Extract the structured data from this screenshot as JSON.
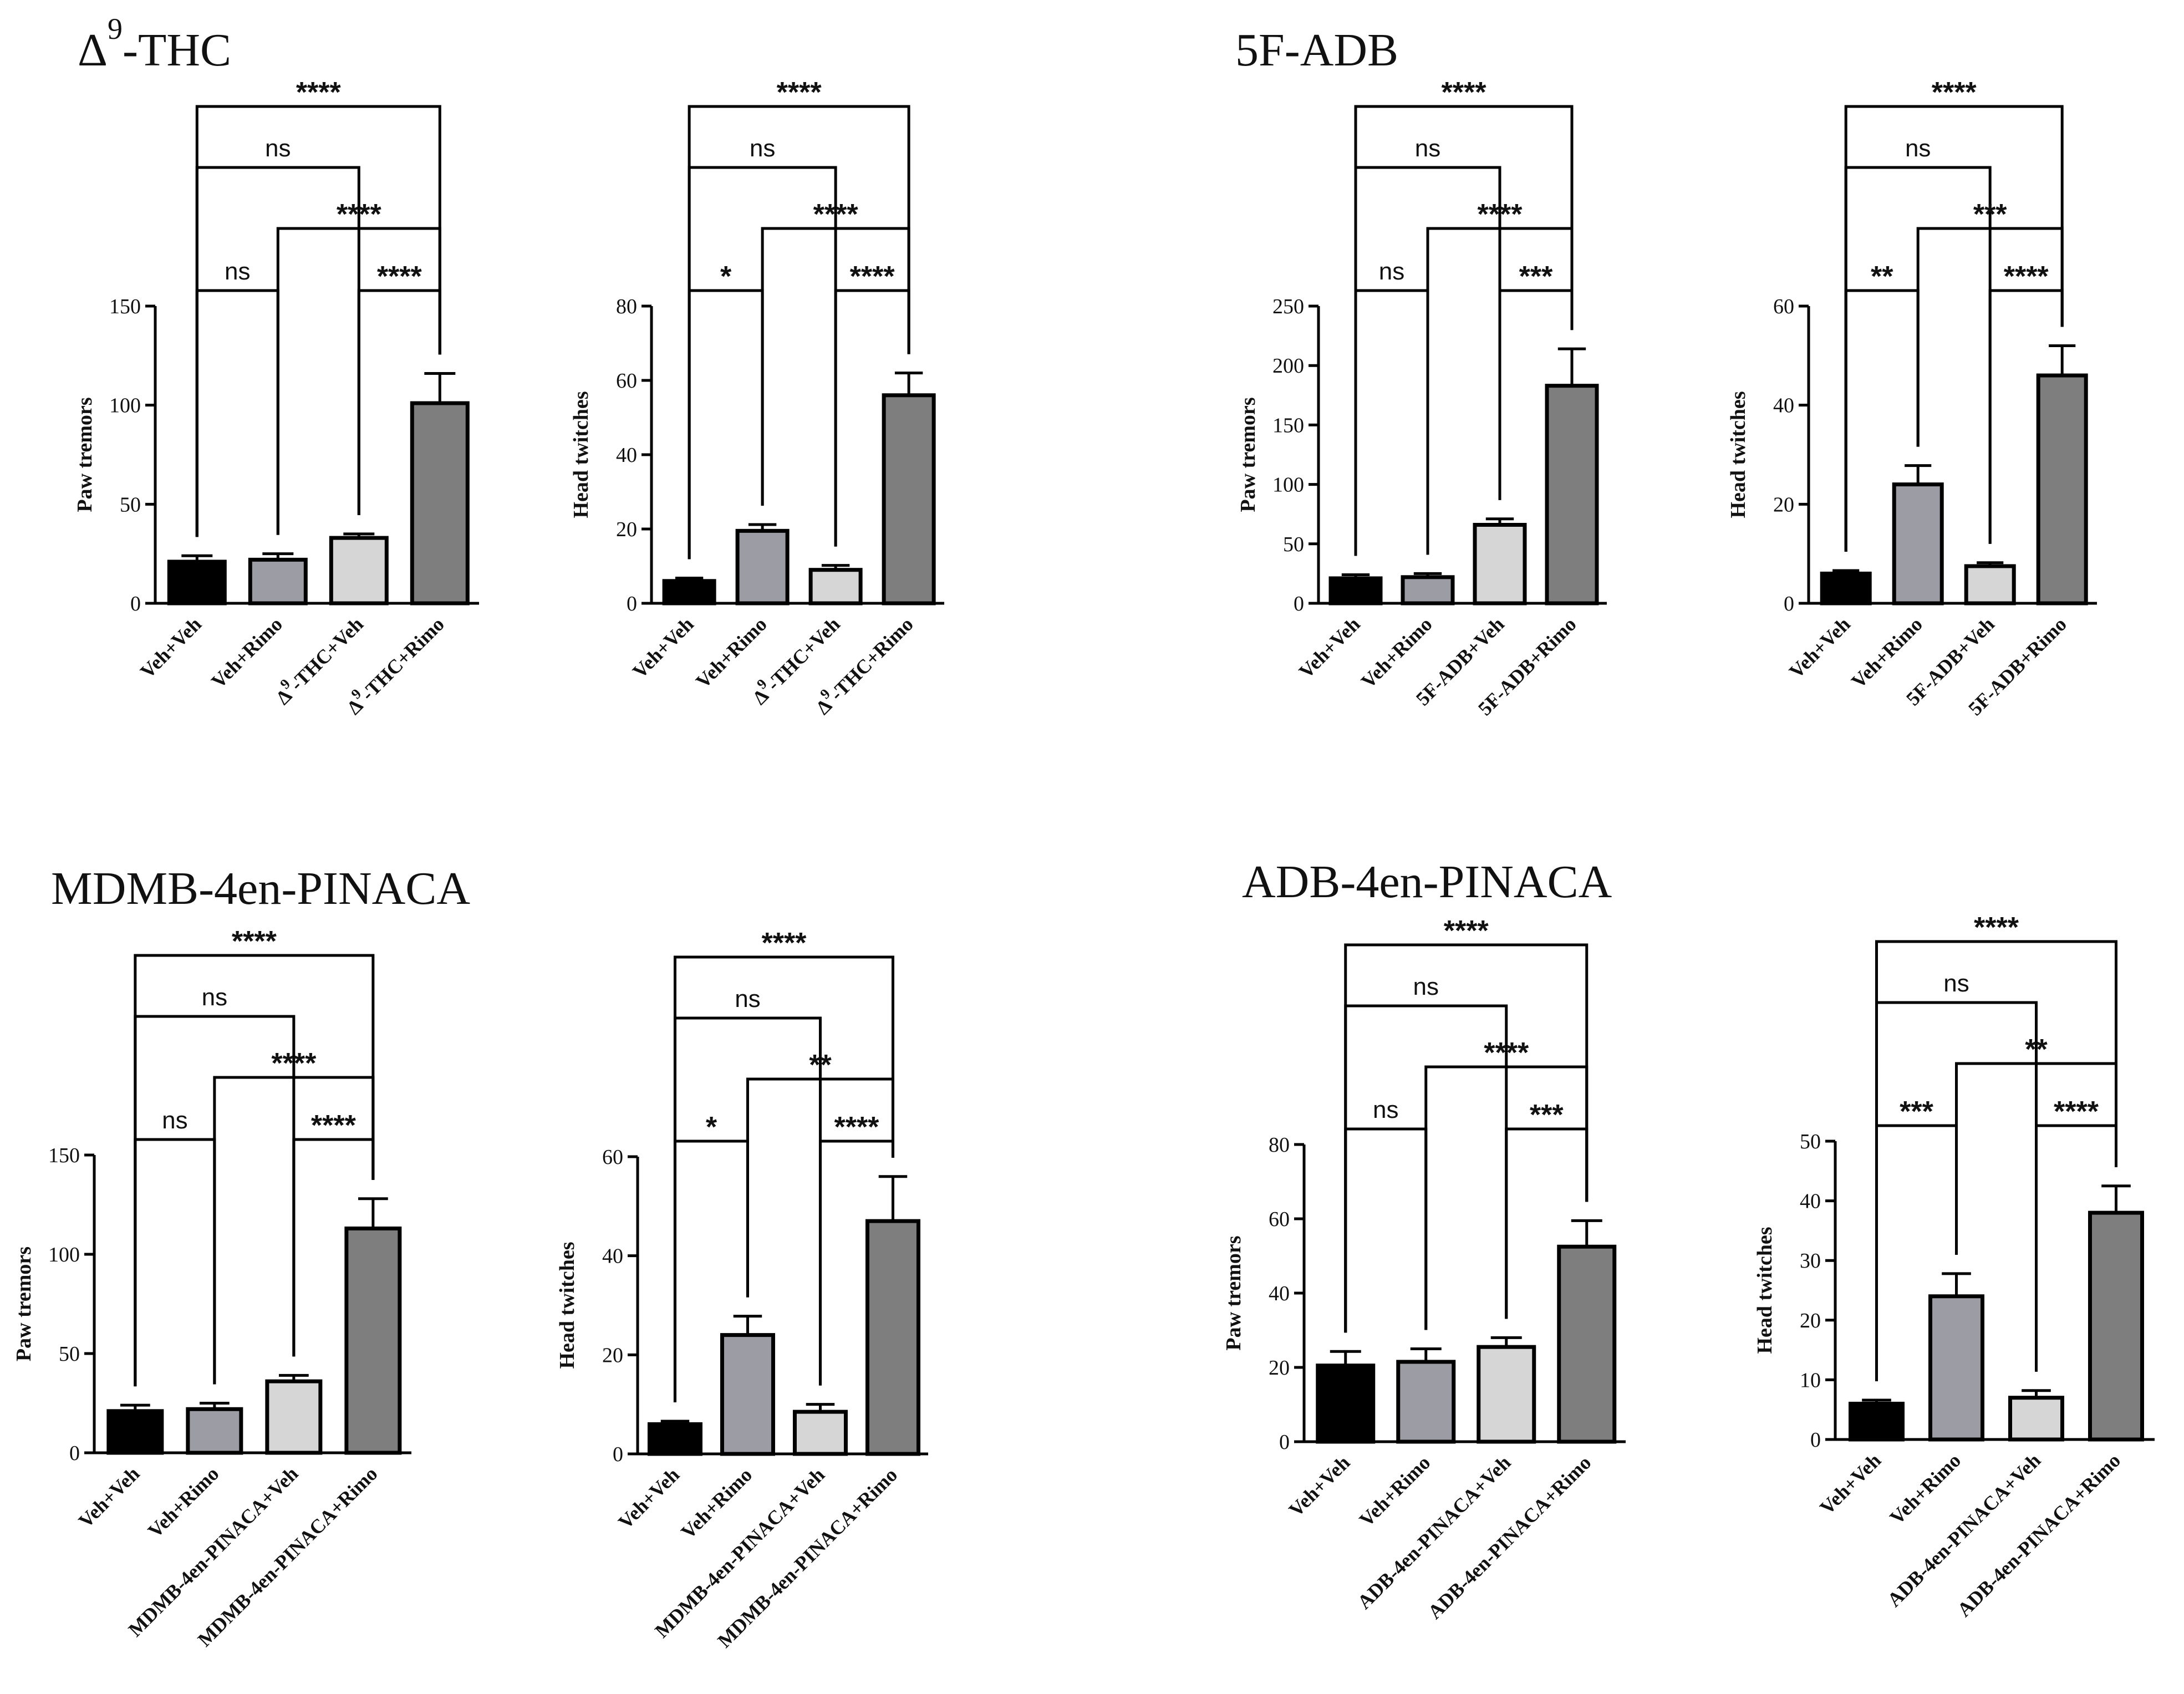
{
  "colors": {
    "veh_veh": "#000000",
    "veh_rimo": "#9c9ca4",
    "drug_veh": "#d6d6d6",
    "drug_rimo": "#7e7e7e",
    "axis": "#000000"
  },
  "groups": [
    {
      "title": "Δ",
      "title_sup": "9",
      "title_rest": "-THC"
    },
    {
      "title": "5F-ADB",
      "title_sup": "",
      "title_rest": ""
    },
    {
      "title": "MDMB-4en-PINACA",
      "title_sup": "",
      "title_rest": ""
    },
    {
      "title": "ADB-4en-PINACA",
      "title_sup": "",
      "title_rest": ""
    }
  ],
  "chart_data": [
    {
      "type": "bar",
      "group": "Δ9-THC",
      "ylabel": "Paw tremors",
      "ylim": [
        0,
        150
      ],
      "yticks": [
        0,
        50,
        100,
        150
      ],
      "categories": [
        "Veh+Veh",
        "Veh+Rimo",
        "Δ9-THC+Veh",
        "Δ9-THC+Rimo"
      ],
      "values": [
        21,
        22,
        33,
        101
      ],
      "errors": [
        3,
        3,
        2,
        15
      ],
      "comparisons": [
        {
          "a": 0,
          "b": 3,
          "label": "****"
        },
        {
          "a": 0,
          "b": 2,
          "label": "ns"
        },
        {
          "a": 1,
          "b": 3,
          "label": "****"
        },
        {
          "a": 0,
          "b": 1,
          "label": "ns"
        },
        {
          "a": 2,
          "b": 3,
          "label": "****"
        }
      ]
    },
    {
      "type": "bar",
      "group": "Δ9-THC",
      "ylabel": "Head twitches",
      "ylim": [
        0,
        80
      ],
      "yticks": [
        0,
        20,
        40,
        60,
        80
      ],
      "categories": [
        "Veh+Veh",
        "Veh+Rimo",
        "Δ9-THC+Veh",
        "Δ9-THC+Rimo"
      ],
      "values": [
        6,
        19.5,
        9,
        56
      ],
      "errors": [
        0.8,
        1.7,
        1.2,
        6
      ],
      "comparisons": [
        {
          "a": 0,
          "b": 3,
          "label": "****"
        },
        {
          "a": 0,
          "b": 2,
          "label": "ns"
        },
        {
          "a": 1,
          "b": 3,
          "label": "****"
        },
        {
          "a": 0,
          "b": 1,
          "label": "*"
        },
        {
          "a": 2,
          "b": 3,
          "label": "****"
        }
      ]
    },
    {
      "type": "bar",
      "group": "5F-ADB",
      "ylabel": "Paw tremors",
      "ylim": [
        0,
        250
      ],
      "yticks": [
        0,
        50,
        100,
        150,
        200,
        250
      ],
      "categories": [
        "Veh+Veh",
        "Veh+Rimo",
        "5F-ADB+Veh",
        "5F-ADB+Rimo"
      ],
      "values": [
        21,
        22,
        66,
        183
      ],
      "errors": [
        3,
        3,
        5,
        31
      ],
      "comparisons": [
        {
          "a": 0,
          "b": 3,
          "label": "****"
        },
        {
          "a": 0,
          "b": 2,
          "label": "ns"
        },
        {
          "a": 1,
          "b": 3,
          "label": "****"
        },
        {
          "a": 0,
          "b": 1,
          "label": "ns"
        },
        {
          "a": 2,
          "b": 3,
          "label": "***"
        }
      ]
    },
    {
      "type": "bar",
      "group": "5F-ADB",
      "ylabel": "Head twitches",
      "ylim": [
        0,
        60
      ],
      "yticks": [
        0,
        20,
        40,
        60
      ],
      "categories": [
        "Veh+Veh",
        "Veh+Rimo",
        "5F-ADB+Veh",
        "5F-ADB+Rimo"
      ],
      "values": [
        6,
        24,
        7.5,
        46
      ],
      "errors": [
        0.6,
        3.8,
        0.7,
        6
      ],
      "comparisons": [
        {
          "a": 0,
          "b": 3,
          "label": "****"
        },
        {
          "a": 0,
          "b": 2,
          "label": "ns"
        },
        {
          "a": 1,
          "b": 3,
          "label": "***"
        },
        {
          "a": 0,
          "b": 1,
          "label": "**"
        },
        {
          "a": 2,
          "b": 3,
          "label": "****"
        }
      ]
    },
    {
      "type": "bar",
      "group": "MDMB-4en-PINACA",
      "ylabel": "Paw tremors",
      "ylim": [
        0,
        150
      ],
      "yticks": [
        0,
        50,
        100,
        150
      ],
      "categories": [
        "Veh+Veh",
        "Veh+Rimo",
        "MDMB-4en-PINACA+Veh",
        "MDMB-4en-PINACA+Rimo"
      ],
      "values": [
        21,
        22,
        36,
        113
      ],
      "errors": [
        3,
        3,
        3,
        15
      ],
      "comparisons": [
        {
          "a": 0,
          "b": 3,
          "label": "****"
        },
        {
          "a": 0,
          "b": 2,
          "label": "ns"
        },
        {
          "a": 1,
          "b": 3,
          "label": "****"
        },
        {
          "a": 0,
          "b": 1,
          "label": "ns"
        },
        {
          "a": 2,
          "b": 3,
          "label": "****"
        }
      ]
    },
    {
      "type": "bar",
      "group": "MDMB-4en-PINACA",
      "ylabel": "Head twitches",
      "ylim": [
        0,
        60
      ],
      "yticks": [
        0,
        20,
        40,
        60
      ],
      "categories": [
        "Veh+Veh",
        "Veh+Rimo",
        "MDMB-4en-PINACA+Veh",
        "MDMB-4en-PINACA+Rimo"
      ],
      "values": [
        6,
        24,
        8.5,
        47
      ],
      "errors": [
        0.6,
        3.8,
        1.5,
        9
      ],
      "comparisons": [
        {
          "a": 0,
          "b": 3,
          "label": "****"
        },
        {
          "a": 0,
          "b": 2,
          "label": "ns"
        },
        {
          "a": 1,
          "b": 3,
          "label": "**"
        },
        {
          "a": 0,
          "b": 1,
          "label": "*"
        },
        {
          "a": 2,
          "b": 3,
          "label": "****"
        }
      ]
    },
    {
      "type": "bar",
      "group": "ADB-4en-PINACA",
      "ylabel": "Paw tremors",
      "ylim": [
        0,
        80
      ],
      "yticks": [
        0,
        20,
        40,
        60,
        80
      ],
      "categories": [
        "Veh+Veh",
        "Veh+Rimo",
        "ADB-4en-PINACA+Veh",
        "ADB-4en-PINACA+Rimo"
      ],
      "values": [
        20.5,
        21.5,
        25.5,
        52.5
      ],
      "errors": [
        3.8,
        3.5,
        2.5,
        7
      ],
      "comparisons": [
        {
          "a": 0,
          "b": 3,
          "label": "****"
        },
        {
          "a": 0,
          "b": 2,
          "label": "ns"
        },
        {
          "a": 1,
          "b": 3,
          "label": "****"
        },
        {
          "a": 0,
          "b": 1,
          "label": "ns"
        },
        {
          "a": 2,
          "b": 3,
          "label": "***"
        }
      ]
    },
    {
      "type": "bar",
      "group": "ADB-4en-PINACA",
      "ylabel": "Head twitches",
      "ylim": [
        0,
        50
      ],
      "yticks": [
        0,
        10,
        20,
        30,
        40,
        50
      ],
      "categories": [
        "Veh+Veh",
        "Veh+Rimo",
        "ADB-4en-PINACA+Veh",
        "ADB-4en-PINACA+Rimo"
      ],
      "values": [
        6,
        24,
        7,
        38
      ],
      "errors": [
        0.6,
        3.8,
        1.2,
        4.5
      ],
      "comparisons": [
        {
          "a": 0,
          "b": 3,
          "label": "****"
        },
        {
          "a": 0,
          "b": 2,
          "label": "ns"
        },
        {
          "a": 1,
          "b": 3,
          "label": "**"
        },
        {
          "a": 0,
          "b": 1,
          "label": "***"
        },
        {
          "a": 2,
          "b": 3,
          "label": "****"
        }
      ]
    }
  ]
}
